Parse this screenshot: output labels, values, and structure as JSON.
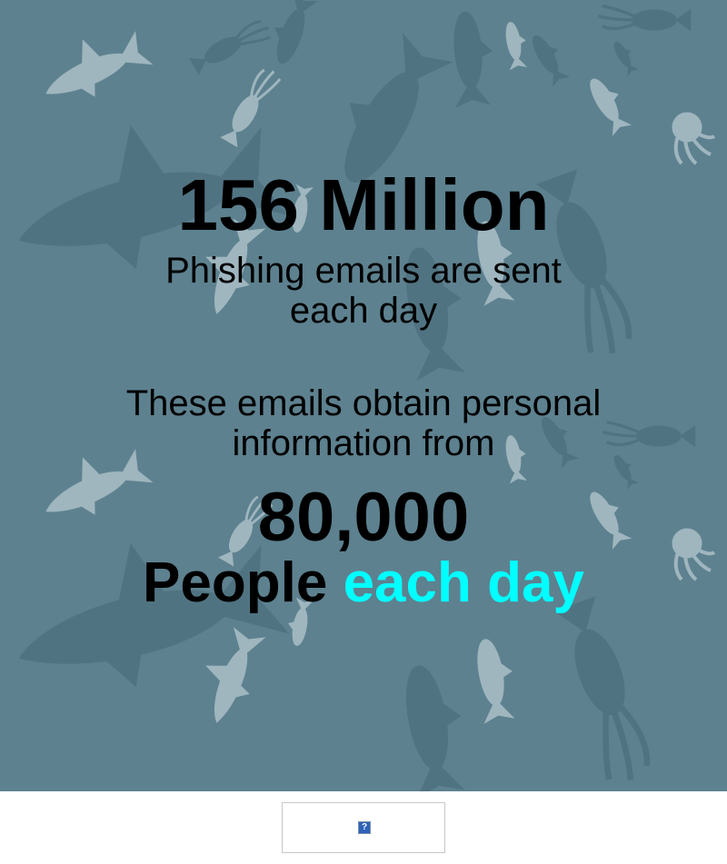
{
  "hero": {
    "stat_primary": "156 Million",
    "stat_primary_caption_lines": [
      "Phishing emails are sent",
      "each day"
    ],
    "description_lines": [
      "These emails obtain personal",
      "information from"
    ],
    "stat_secondary": "80,000",
    "people_label": "People",
    "highlight_text": "each day",
    "colors": {
      "background": "#5d818f",
      "text": "#000000",
      "highlight": "#00ffff",
      "silhouette_light": "#9fb6bf",
      "silhouette_dark": "#4f7180"
    }
  },
  "footer": {
    "broken_image_icon": "broken-image-icon",
    "broken_image_glyph": "?"
  }
}
